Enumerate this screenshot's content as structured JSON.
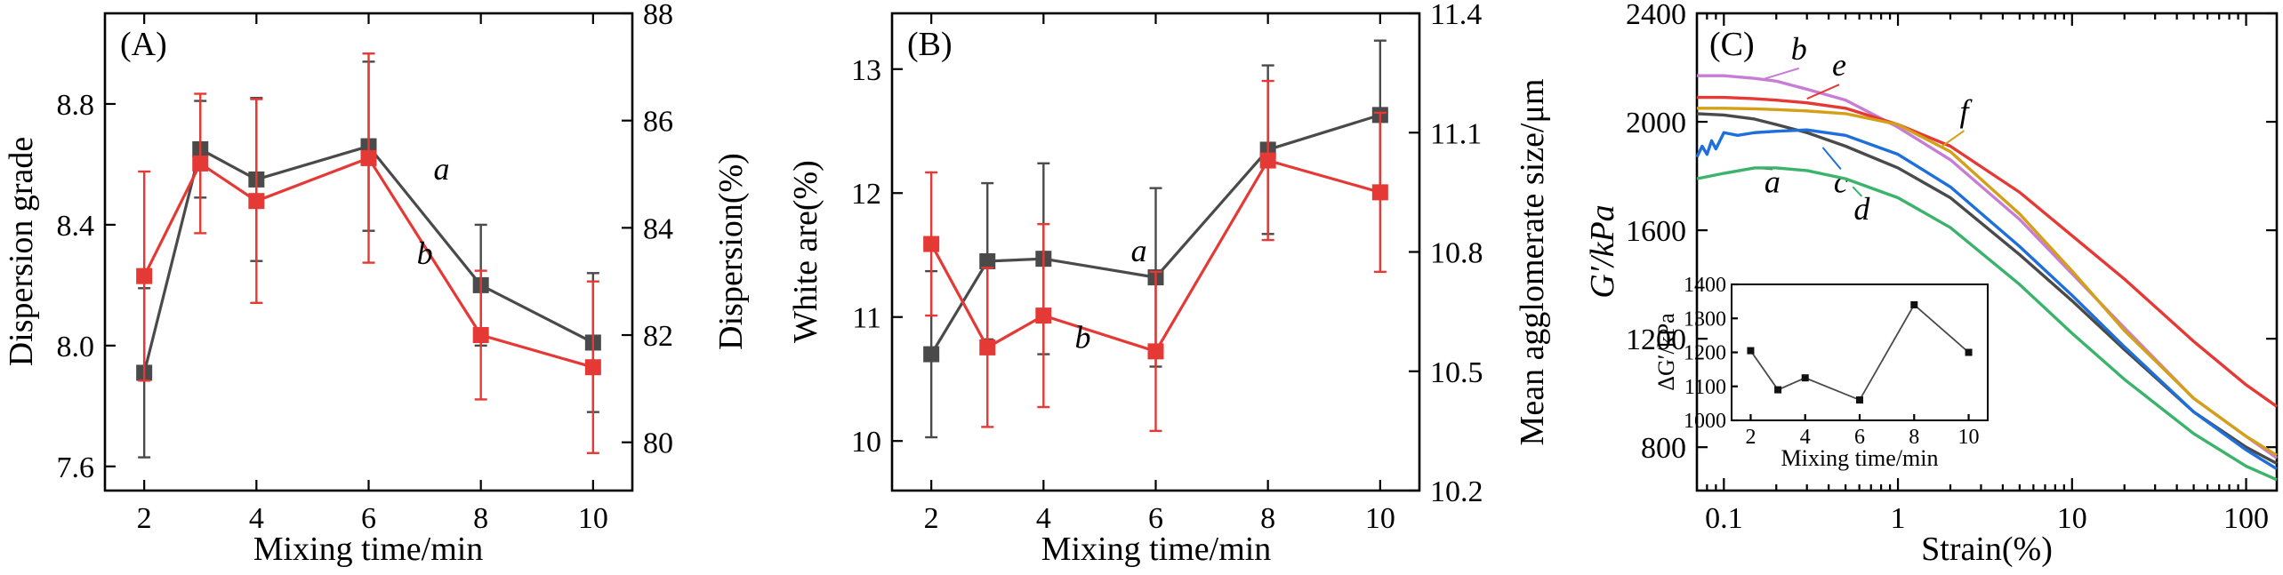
{
  "figure": {
    "panels": [
      "(A)",
      "(B)",
      "(C)"
    ]
  },
  "chart_data": [
    {
      "type": "line",
      "panel": "(A)",
      "xlabel": "Mixing time/min",
      "ylabel": "Dispersion grade",
      "y2label": "Dispersion(%)",
      "x_ticks": [
        2,
        4,
        6,
        8,
        10
      ],
      "xlim": [
        1.3,
        10.7
      ],
      "ylim": [
        7.52,
        9.1
      ],
      "y_ticks": [
        7.6,
        8.0,
        8.4,
        8.8
      ],
      "y_tick_labels": [
        "7.6",
        "8.0",
        "8.4",
        "8.8"
      ],
      "y2lim": [
        79.1,
        88.0
      ],
      "y2_ticks": [
        80,
        82,
        84,
        86,
        88
      ],
      "y2_tick_labels": [
        "80",
        "82",
        "84",
        "86",
        "88"
      ],
      "series": [
        {
          "name": "a",
          "axis": "left",
          "color": "#4a4a4a",
          "label": "a",
          "label_at": [
            7.3,
            8.55
          ],
          "x": [
            2,
            3,
            4,
            6,
            8,
            10
          ],
          "y": [
            7.91,
            8.65,
            8.55,
            8.66,
            8.2,
            8.01
          ],
          "err": [
            0.28,
            0.16,
            0.27,
            0.28,
            0.2,
            0.23
          ]
        },
        {
          "name": "b",
          "axis": "right",
          "color": "#e53935",
          "label": "b",
          "label_at": [
            7.0,
            8.27
          ],
          "x": [
            2,
            3,
            4,
            6,
            8,
            10
          ],
          "y": [
            83.1,
            85.2,
            84.5,
            85.3,
            82.0,
            81.4
          ],
          "err": [
            1.95,
            1.3,
            1.9,
            1.95,
            1.2,
            1.6
          ]
        }
      ]
    },
    {
      "type": "line",
      "panel": "(B)",
      "xlabel": "Mixing time/min",
      "ylabel": "White are(%)",
      "y2label": "Mean agglomerate size/μm",
      "x_ticks": [
        2,
        4,
        6,
        8,
        10
      ],
      "xlim": [
        1.3,
        10.7
      ],
      "ylim": [
        9.6,
        13.45
      ],
      "y_ticks": [
        10,
        11,
        12,
        13
      ],
      "y_tick_labels": [
        "10",
        "11",
        "12",
        "13"
      ],
      "y2lim": [
        10.2,
        11.4
      ],
      "y2_ticks": [
        10.2,
        10.5,
        10.8,
        11.1,
        11.4
      ],
      "y2_tick_labels": [
        "10.2",
        "10.5",
        "10.8",
        "11.1",
        "11.4"
      ],
      "series": [
        {
          "name": "a",
          "axis": "left",
          "color": "#4a4a4a",
          "label": "a",
          "label_at": [
            5.7,
            11.45
          ],
          "x": [
            2,
            3,
            4,
            6,
            8,
            10
          ],
          "y": [
            10.7,
            11.45,
            11.47,
            11.32,
            12.35,
            12.63
          ],
          "err": [
            0.67,
            0.63,
            0.77,
            0.72,
            0.68,
            0.6
          ]
        },
        {
          "name": "b",
          "axis": "right",
          "color": "#e53935",
          "label": "b",
          "label_at": [
            4.7,
            10.75
          ],
          "x": [
            2,
            3,
            4,
            6,
            8,
            10
          ],
          "y": [
            10.82,
            10.56,
            10.64,
            10.55,
            11.03,
            10.95
          ],
          "err": [
            0.18,
            0.2,
            0.23,
            0.2,
            0.2,
            0.2
          ]
        }
      ]
    },
    {
      "type": "line",
      "panel": "(C)",
      "xscale": "log",
      "xlabel": "Strain(%)",
      "ylabel": "G′/kPa",
      "xlim": [
        0.07,
        150
      ],
      "x_ticks": [
        0.1,
        1,
        10,
        100
      ],
      "x_tick_labels": [
        "0.1",
        "1",
        "10",
        "100"
      ],
      "ylim": [
        640,
        2400
      ],
      "y_ticks": [
        800,
        1200,
        1600,
        2000,
        2400
      ],
      "y_tick_labels": [
        "800",
        "1200",
        "1600",
        "2000",
        "2400"
      ],
      "series": [
        {
          "name": "a",
          "color": "#4a4a4a",
          "label": "a",
          "label_at": [
            0.19,
            1740
          ],
          "label_from": [
            0.15,
            1830
          ],
          "x": [
            0.07,
            0.1,
            0.15,
            0.2,
            0.3,
            0.5,
            1,
            2,
            5,
            10,
            20,
            50,
            100,
            150
          ],
          "y": [
            2030,
            2025,
            2010,
            1990,
            1960,
            1910,
            1830,
            1720,
            1510,
            1340,
            1160,
            930,
            800,
            740
          ]
        },
        {
          "name": "b",
          "color": "#c77dd6",
          "label": "b",
          "label_at": [
            0.27,
            2230
          ],
          "label_from": [
            0.17,
            2158
          ],
          "x": [
            0.07,
            0.1,
            0.15,
            0.2,
            0.3,
            0.5,
            1,
            2,
            5,
            10,
            20,
            50,
            100,
            150
          ],
          "y": [
            2170,
            2170,
            2160,
            2150,
            2120,
            2080,
            1980,
            1860,
            1640,
            1440,
            1240,
            980,
            840,
            760
          ]
        },
        {
          "name": "c",
          "color": "#1e6fd9",
          "label": "c",
          "label_at": [
            0.47,
            1740
          ],
          "label_from": [
            0.37,
            1905
          ],
          "x": [
            0.07,
            0.075,
            0.08,
            0.085,
            0.09,
            0.1,
            0.12,
            0.15,
            0.2,
            0.3,
            0.5,
            1,
            2,
            5,
            10,
            20,
            50,
            100,
            150
          ],
          "y": [
            1870,
            1910,
            1880,
            1930,
            1900,
            1960,
            1950,
            1960,
            1965,
            1970,
            1950,
            1880,
            1760,
            1540,
            1360,
            1170,
            930,
            790,
            720
          ]
        },
        {
          "name": "d",
          "color": "#3bb36b",
          "label": "d",
          "label_at": [
            0.62,
            1640
          ],
          "label_from": [
            0.55,
            1760
          ],
          "x": [
            0.07,
            0.1,
            0.15,
            0.2,
            0.3,
            0.5,
            1,
            2,
            5,
            10,
            20,
            50,
            100,
            150
          ],
          "y": [
            1790,
            1810,
            1830,
            1830,
            1820,
            1790,
            1720,
            1610,
            1400,
            1220,
            1050,
            850,
            730,
            680
          ]
        },
        {
          "name": "e",
          "color": "#e53935",
          "label": "e",
          "label_at": [
            0.46,
            2170
          ],
          "label_from": [
            0.3,
            2085
          ],
          "x": [
            0.07,
            0.1,
            0.15,
            0.2,
            0.3,
            0.5,
            1,
            2,
            5,
            10,
            20,
            50,
            100,
            150
          ],
          "y": [
            2090,
            2090,
            2085,
            2080,
            2070,
            2050,
            1990,
            1910,
            1740,
            1580,
            1420,
            1190,
            1030,
            950
          ]
        },
        {
          "name": "f",
          "color": "#d4a017",
          "label": "f",
          "label_at": [
            2.4,
            2000
          ],
          "label_from": [
            1.75,
            1905
          ],
          "x": [
            0.07,
            0.1,
            0.15,
            0.2,
            0.3,
            0.5,
            1,
            2,
            5,
            10,
            20,
            50,
            100,
            150
          ],
          "y": [
            2050,
            2050,
            2048,
            2045,
            2040,
            2030,
            1990,
            1890,
            1660,
            1450,
            1230,
            980,
            840,
            770
          ]
        }
      ],
      "inset": {
        "type": "line",
        "xlabel": "Mixing time/min",
        "ylabel": "ΔG′/kPa",
        "xlim": [
          1.3,
          10.7
        ],
        "x_ticks": [
          2,
          4,
          6,
          8,
          10
        ],
        "x_tick_labels": [
          "2",
          "4",
          "6",
          "8",
          "10"
        ],
        "ylim": [
          1000,
          1400
        ],
        "y_ticks": [
          1000,
          1100,
          1200,
          1300,
          1400
        ],
        "y_tick_labels": [
          "1000",
          "1100",
          "1200",
          "1300",
          "1400"
        ],
        "series": [
          {
            "name": "delta",
            "color": "#4a4a4a",
            "x": [
              2,
              3,
              4,
              6,
              8,
              10
            ],
            "y": [
              1205,
              1090,
              1125,
              1060,
              1340,
              1200
            ]
          }
        ]
      }
    }
  ]
}
